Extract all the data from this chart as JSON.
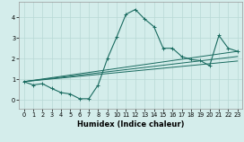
{
  "xlabel": "Humidex (Indice chaleur)",
  "bg_color": "#d4edeb",
  "line_color": "#1a6b60",
  "grid_color": "#b8d8d5",
  "xlim": [
    -0.5,
    23.5
  ],
  "ylim": [
    -0.45,
    4.75
  ],
  "xticks": [
    0,
    1,
    2,
    3,
    4,
    5,
    6,
    7,
    8,
    9,
    10,
    11,
    12,
    13,
    14,
    15,
    16,
    17,
    18,
    19,
    20,
    21,
    22,
    23
  ],
  "yticks": [
    0,
    1,
    2,
    3,
    4
  ],
  "main_x": [
    0,
    1,
    2,
    3,
    4,
    5,
    6,
    7,
    8,
    9,
    10,
    11,
    12,
    13,
    14,
    15,
    16,
    17,
    18,
    19,
    20,
    21,
    22,
    23
  ],
  "main_y": [
    0.88,
    0.72,
    0.78,
    0.55,
    0.35,
    0.28,
    0.05,
    0.05,
    0.72,
    2.0,
    3.05,
    4.15,
    4.38,
    3.92,
    3.55,
    2.5,
    2.5,
    2.1,
    1.95,
    1.9,
    1.65,
    3.12,
    2.5,
    2.35
  ],
  "reg_lines": [
    [
      0.88,
      2.35
    ],
    [
      0.88,
      2.1
    ],
    [
      0.88,
      1.88
    ]
  ],
  "marker_size": 2.5,
  "lw_main": 0.8,
  "lw_reg": 0.7
}
